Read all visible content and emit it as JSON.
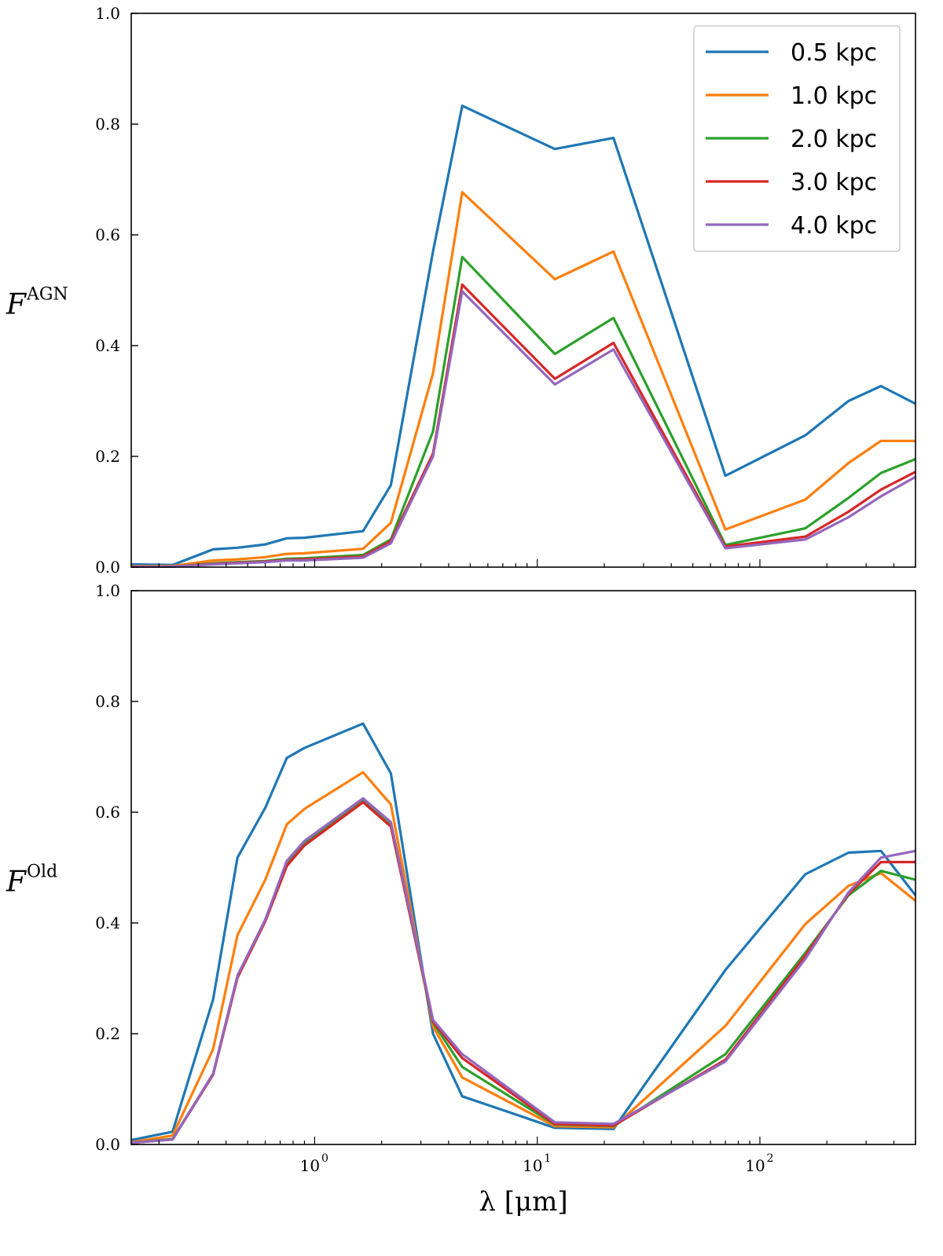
{
  "chart_data": [
    {
      "type": "line",
      "panel": "top",
      "ylabel": "F",
      "ylabel_sup": "AGN",
      "xscale": "log",
      "xlim": [
        0.15,
        500
      ],
      "ylim": [
        0.0,
        1.0
      ],
      "yticks": [
        "0.0",
        "0.2",
        "0.4",
        "0.6",
        "0.8",
        "1.0"
      ],
      "grid": false,
      "legend": {
        "position": "top-right",
        "entries": [
          "0.5 kpc",
          "1.0 kpc",
          "2.0 kpc",
          "3.0 kpc",
          "4.0 kpc"
        ]
      },
      "x": [
        0.15,
        0.23,
        0.35,
        0.45,
        0.6,
        0.75,
        0.9,
        1.65,
        2.2,
        3.4,
        4.6,
        12,
        22,
        70,
        160,
        250,
        350,
        500
      ],
      "series": [
        {
          "name": "0.5 kpc",
          "color": "#1f77b4",
          "values": [
            0.005,
            0.004,
            0.032,
            0.035,
            0.041,
            0.052,
            0.053,
            0.065,
            0.148,
            0.57,
            0.833,
            0.755,
            0.775,
            0.165,
            0.238,
            0.3,
            0.327,
            0.295
          ]
        },
        {
          "name": "1.0 kpc",
          "color": "#ff7f0e",
          "values": [
            0.002,
            0.002,
            0.012,
            0.014,
            0.018,
            0.024,
            0.025,
            0.033,
            0.08,
            0.35,
            0.677,
            0.52,
            0.57,
            0.068,
            0.122,
            0.188,
            0.228,
            0.228
          ]
        },
        {
          "name": "2.0 kpc",
          "color": "#2ca02c",
          "values": [
            0.001,
            0.001,
            0.007,
            0.009,
            0.011,
            0.015,
            0.016,
            0.022,
            0.05,
            0.245,
            0.56,
            0.385,
            0.45,
            0.04,
            0.07,
            0.125,
            0.17,
            0.195
          ]
        },
        {
          "name": "3.0 kpc",
          "color": "#d62728",
          "values": [
            0.001,
            0.001,
            0.006,
            0.008,
            0.01,
            0.013,
            0.014,
            0.019,
            0.047,
            0.205,
            0.51,
            0.34,
            0.405,
            0.037,
            0.055,
            0.1,
            0.14,
            0.172
          ]
        },
        {
          "name": "4.0 kpc",
          "color": "#9467bd",
          "values": [
            0.001,
            0.001,
            0.005,
            0.007,
            0.009,
            0.012,
            0.012,
            0.017,
            0.043,
            0.2,
            0.498,
            0.33,
            0.393,
            0.034,
            0.05,
            0.09,
            0.128,
            0.163
          ]
        }
      ]
    },
    {
      "type": "line",
      "panel": "bottom",
      "ylabel": "F",
      "ylabel_sup": "Old",
      "xlabel": "λ [μm]",
      "xscale": "log",
      "xlim": [
        0.15,
        500
      ],
      "ylim": [
        0.0,
        1.0
      ],
      "yticks": [
        "0.0",
        "0.2",
        "0.4",
        "0.6",
        "0.8",
        "1.0"
      ],
      "xticks": [
        {
          "value": 1,
          "base": "10",
          "exp": "0"
        },
        {
          "value": 10,
          "base": "10",
          "exp": "1"
        },
        {
          "value": 100,
          "base": "10",
          "exp": "2"
        }
      ],
      "grid": false,
      "x": [
        0.15,
        0.23,
        0.35,
        0.45,
        0.6,
        0.75,
        0.9,
        1.65,
        2.2,
        3.4,
        4.6,
        12,
        22,
        70,
        160,
        250,
        350,
        500
      ],
      "series": [
        {
          "name": "0.5 kpc",
          "color": "#1f77b4",
          "values": [
            0.008,
            0.023,
            0.262,
            0.518,
            0.608,
            0.698,
            0.716,
            0.76,
            0.67,
            0.2,
            0.087,
            0.03,
            0.028,
            0.315,
            0.488,
            0.527,
            0.53,
            0.45
          ]
        },
        {
          "name": "1.0 kpc",
          "color": "#ff7f0e",
          "values": [
            0.004,
            0.016,
            0.172,
            0.378,
            0.478,
            0.578,
            0.606,
            0.672,
            0.614,
            0.213,
            0.121,
            0.033,
            0.031,
            0.214,
            0.398,
            0.467,
            0.49,
            0.44
          ]
        },
        {
          "name": "2.0 kpc",
          "color": "#2ca02c",
          "values": [
            0.003,
            0.01,
            0.127,
            0.303,
            0.406,
            0.505,
            0.543,
            0.62,
            0.576,
            0.22,
            0.14,
            0.036,
            0.033,
            0.163,
            0.346,
            0.45,
            0.494,
            0.478
          ]
        },
        {
          "name": "3.0 kpc",
          "color": "#d62728",
          "values": [
            0.003,
            0.009,
            0.126,
            0.301,
            0.403,
            0.503,
            0.54,
            0.618,
            0.574,
            0.222,
            0.156,
            0.037,
            0.034,
            0.153,
            0.341,
            0.452,
            0.51,
            0.51
          ]
        },
        {
          "name": "4.0 kpc",
          "color": "#9467bd",
          "values": [
            0.003,
            0.009,
            0.128,
            0.305,
            0.406,
            0.512,
            0.548,
            0.625,
            0.582,
            0.225,
            0.163,
            0.04,
            0.037,
            0.15,
            0.335,
            0.455,
            0.518,
            0.53
          ]
        }
      ]
    }
  ]
}
